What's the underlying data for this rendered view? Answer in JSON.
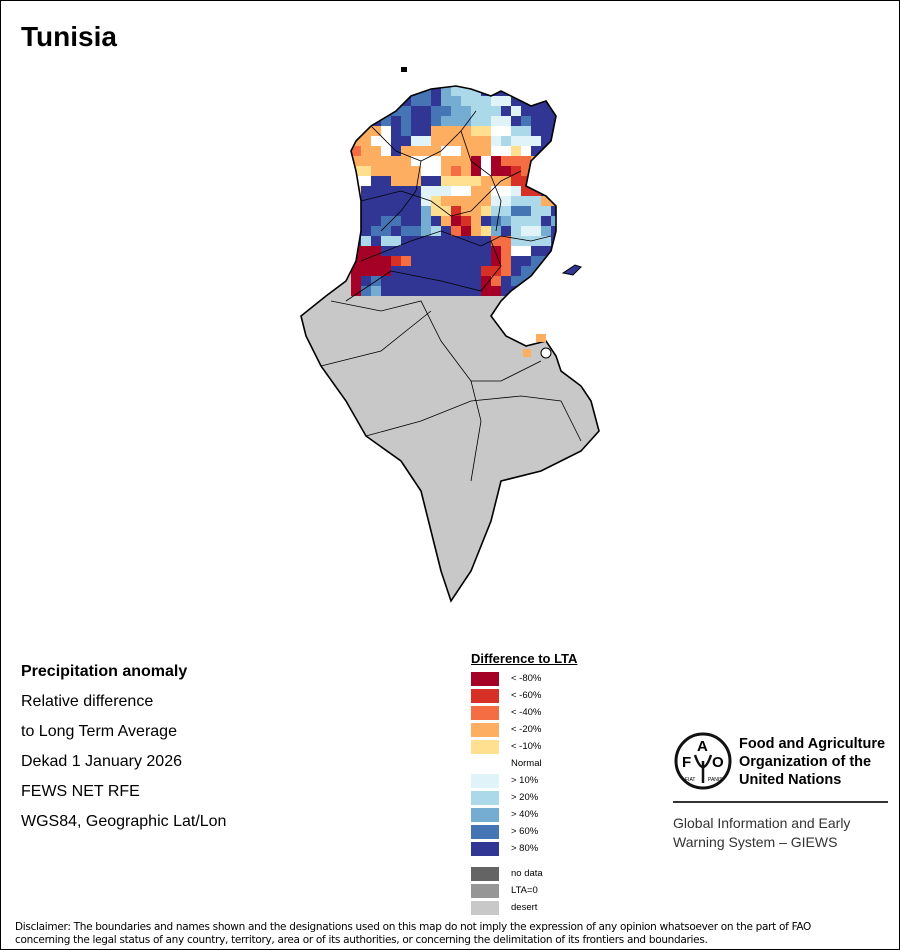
{
  "title": "Tunisia",
  "info": {
    "heading": "Precipitation anomaly",
    "lines": [
      "Relative difference",
      "to Long Term Average",
      "Dekad 1 January 2026",
      "FEWS NET RFE",
      "WGS84, Geographic Lat/Lon"
    ]
  },
  "legend": {
    "title": "Difference to LTA",
    "classes": [
      {
        "label": "< -80%",
        "color": "#a50026"
      },
      {
        "label": "< -60%",
        "color": "#d73027"
      },
      {
        "label": "< -40%",
        "color": "#f46d43"
      },
      {
        "label": "< -20%",
        "color": "#fdae61"
      },
      {
        "label": "< -10%",
        "color": "#fee090"
      },
      {
        "label": "Normal",
        "color": "#ffffff"
      },
      {
        "label": "> 10%",
        "color": "#e0f3f8"
      },
      {
        "label": "> 20%",
        "color": "#abd9e9"
      },
      {
        "label": "> 40%",
        "color": "#74add1"
      },
      {
        "label": "> 60%",
        "color": "#4575b4"
      },
      {
        "label": "> 80%",
        "color": "#313695"
      }
    ],
    "extra": [
      {
        "label": "no data",
        "color": "#646464"
      },
      {
        "label": "LTA=0",
        "color": "#969696"
      },
      {
        "label": "desert",
        "color": "#c8c8c8"
      }
    ]
  },
  "logo": {
    "org": [
      "Food and Agriculture",
      "Organization of the",
      "United Nations"
    ],
    "emblem_text": "FAO FIAT PANIS",
    "system": [
      "Global Information and Early",
      "Warning System – GIEWS"
    ]
  },
  "disclaimer": [
    "Disclaimer: The boundaries and names shown and the designations used on this map do not imply the expression of any opinion whatsoever on the part of FAO",
    "concerning the legal status of any country, territory, area or of its authorities, or concerning the delimitation of its frontiers and boundaries."
  ],
  "anomaly_grid": [
    "AAAAAA99A8777AAAAAAAA",
    "AAAAAA99A8877766AAAAA",
    "AAAA99AA9988777A6AAAA",
    "AAA9A9AA98887766A9AAA",
    "3335A9AA3333445577AAA",
    "3355AA6633333367666AA",
    "2335A3333553335545AAA",
    "3333335553330502223AA",
    "4433333553230500122AA",
    "55AA333AA444433311299",
    "4AAAAAA666553355611A5",
    "5AAAAAA64333336677733",
    "AAAAAAA8441334779977A",
    "AAA99AA8A3013A98777A8",
    "AA99A9987A20348A7668A",
    "A7A77AAAAAAAAA227777A",
    "000AAAAAAAAAAA0255AAA",
    "000012AAAAAAAA02AA99A",
    "0000AAAAAAAAA112A99AA",
    "0A9AAAAAAAAAA02A99AAA",
    "098AAAAAAAAAA00AAAAAA"
  ]
}
